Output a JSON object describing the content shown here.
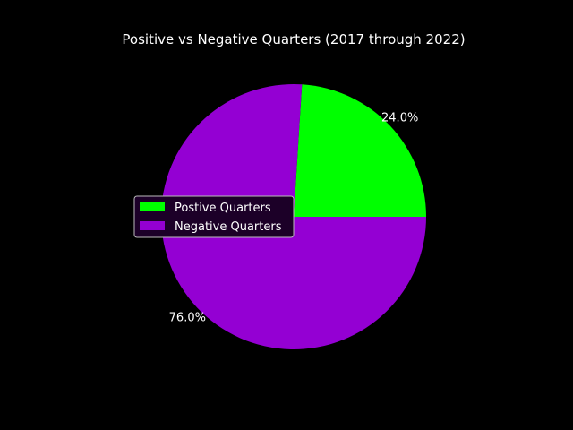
{
  "chart_data": {
    "type": "pie",
    "title": "Positive vs Negative Quarters (2017 through 2022)",
    "slices": [
      {
        "label": "Postive Quarters",
        "value": 24.0,
        "pct_label": "24.0%",
        "color": "#00ff00"
      },
      {
        "label": "Negative Quarters",
        "value": 76.0,
        "pct_label": "76.0%",
        "color": "#9400d3"
      }
    ],
    "legend_position": "center-left"
  },
  "colors": {
    "background": "#000000",
    "text": "#ffffff"
  }
}
